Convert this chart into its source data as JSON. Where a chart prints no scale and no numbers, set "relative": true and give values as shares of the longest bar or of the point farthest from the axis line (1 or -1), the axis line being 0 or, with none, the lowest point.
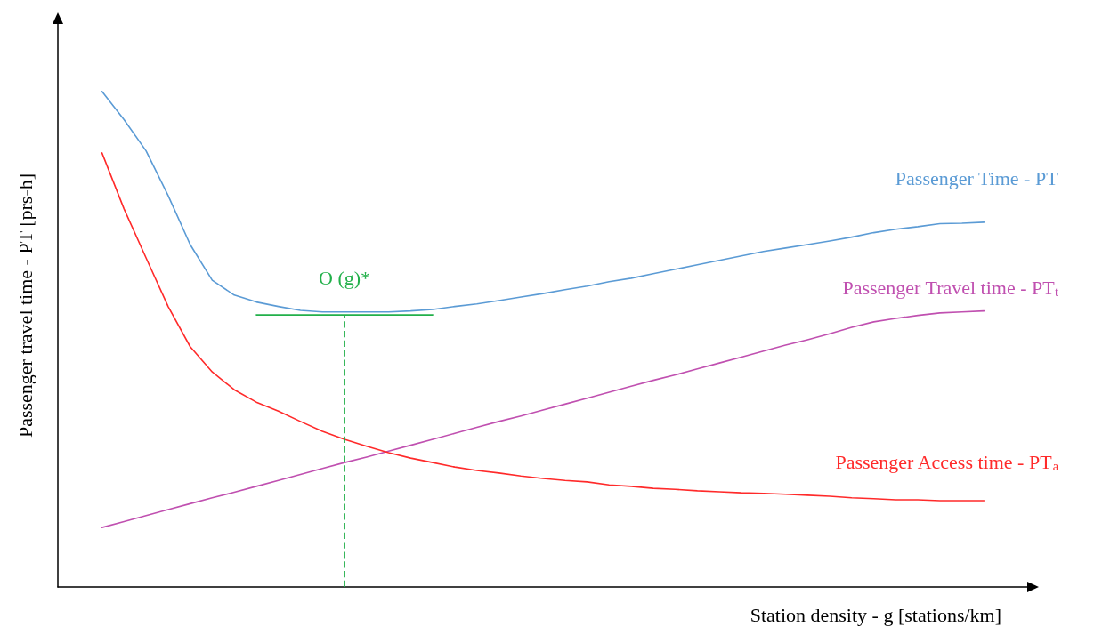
{
  "chart_data": {
    "type": "line",
    "relative": true,
    "xlabel": "Station density - g [stations/km]",
    "ylabel": "Passenger travel time - PT [prs-h]",
    "grid": false,
    "marker": "none",
    "categories": [
      null,
      null,
      null,
      null,
      null,
      null,
      null,
      null,
      null,
      null,
      null,
      null,
      null,
      null,
      null,
      null,
      null,
      null,
      null,
      null,
      null,
      null,
      null,
      null,
      null,
      null,
      null,
      null,
      null,
      null,
      null,
      null,
      null,
      null,
      null,
      null,
      null,
      null,
      null,
      null,
      null
    ],
    "series": [
      {
        "name": "Passenger Time - PT",
        "color": "#5b9bd5",
        "values": [
          1.0,
          0.943,
          0.88,
          0.79,
          0.691,
          0.619,
          0.589,
          0.575,
          0.566,
          0.558,
          0.555,
          0.555,
          0.555,
          0.555,
          0.557,
          0.56,
          0.566,
          0.571,
          0.578,
          0.585,
          0.592,
          0.6,
          0.607,
          0.616,
          0.623,
          0.632,
          0.641,
          0.65,
          0.659,
          0.668,
          0.677,
          0.684,
          0.691,
          0.698,
          0.706,
          0.715,
          0.722,
          0.727,
          0.733,
          0.734,
          0.736
        ]
      },
      {
        "name": "Passenger Travel time - PT$_{t}$",
        "color": "#c050b0",
        "values": [
          0.12,
          0.132,
          0.144,
          0.156,
          0.168,
          0.18,
          0.191,
          0.203,
          0.215,
          0.227,
          0.239,
          0.251,
          0.262,
          0.274,
          0.286,
          0.298,
          0.31,
          0.322,
          0.334,
          0.345,
          0.357,
          0.369,
          0.381,
          0.393,
          0.405,
          0.417,
          0.428,
          0.44,
          0.452,
          0.464,
          0.476,
          0.488,
          0.499,
          0.511,
          0.524,
          0.535,
          0.542,
          0.548,
          0.553,
          0.555,
          0.557
        ]
      },
      {
        "name": "Passenger Access time - PT$_{a}$",
        "color": "#ff2a2a",
        "values": [
          0.876,
          0.763,
          0.664,
          0.566,
          0.485,
          0.434,
          0.398,
          0.373,
          0.355,
          0.334,
          0.314,
          0.298,
          0.284,
          0.271,
          0.26,
          0.251,
          0.242,
          0.235,
          0.23,
          0.224,
          0.219,
          0.215,
          0.212,
          0.206,
          0.203,
          0.199,
          0.197,
          0.194,
          0.192,
          0.19,
          0.189,
          0.187,
          0.185,
          0.183,
          0.18,
          0.178,
          0.176,
          0.176,
          0.174,
          0.174,
          0.174
        ]
      },
      {
        "color": "#22b04a",
        "values": [
          null,
          null,
          null,
          null,
          null,
          null,
          null,
          0.549,
          0.549,
          0.549,
          0.549,
          0.549,
          0.549,
          0.549,
          0.549,
          0.549,
          null,
          null,
          null,
          null,
          null,
          null,
          null,
          null,
          null,
          null,
          null,
          null,
          null,
          null,
          null,
          null,
          null,
          null,
          null,
          null,
          null,
          null,
          null,
          null,
          null
        ]
      }
    ],
    "annotations": [
      {
        "text": "O (g)*",
        "y": 0.549
      }
    ]
  }
}
